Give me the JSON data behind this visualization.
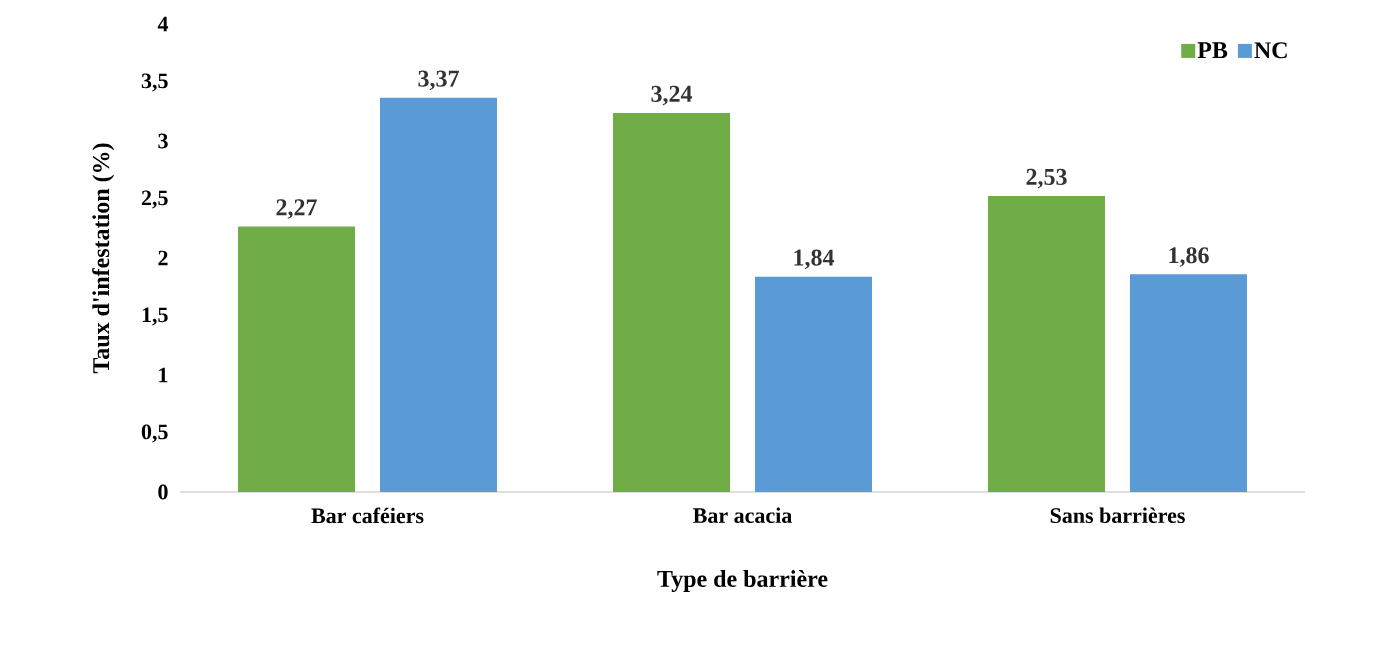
{
  "chart_data": {
    "type": "bar",
    "xlabel": "Type de barrière",
    "ylabel": "Taux d'infestation (%)",
    "categories": [
      "Bar caféiers",
      "Bar acacia",
      "Sans barrières"
    ],
    "series": [
      {
        "name": "PB",
        "color": "#70ad47",
        "values": [
          2.27,
          3.24,
          2.53
        ],
        "value_labels": [
          "2,27",
          "3,24",
          "2,53"
        ]
      },
      {
        "name": "NC",
        "color": "#5b9bd5",
        "values": [
          3.37,
          1.84,
          1.86
        ],
        "value_labels": [
          "3,37",
          "1,84",
          "1,86"
        ]
      }
    ],
    "ylim": [
      0,
      4
    ],
    "yticks": [
      0,
      {
        "value": 0.5,
        "label": "0,5"
      },
      1,
      {
        "value": 1.5,
        "label": "1,5"
      },
      2,
      {
        "value": 2.5,
        "label": "2,5"
      },
      3,
      {
        "value": 3.5,
        "label": "3,5"
      },
      4
    ],
    "grid": false,
    "legend": "top right"
  }
}
